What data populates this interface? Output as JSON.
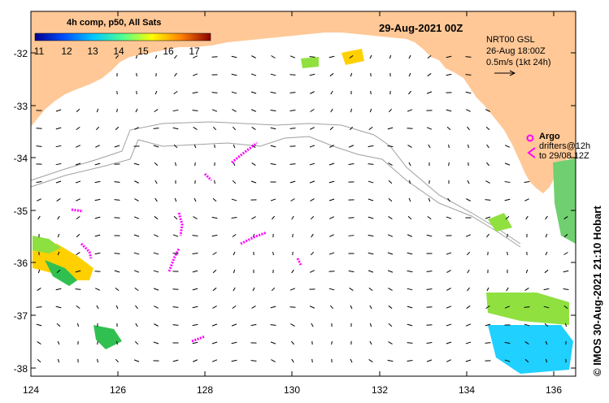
{
  "title": "29-Aug-2021 00Z",
  "colorbar": {
    "title": "4h comp, p50, All Sats",
    "ticks": [
      "11",
      "12",
      "13",
      "14",
      "15",
      "16",
      "17"
    ],
    "stops": [
      "#00008f",
      "#0050ff",
      "#00c8ff",
      "#50ff90",
      "#ffff00",
      "#ff8000",
      "#8b0000"
    ]
  },
  "currents_legend": {
    "line1": "NRT00 GSL",
    "line2": "26-Aug 18:00Z",
    "line3": "0.5m/s (1kt 24h)"
  },
  "argo": {
    "label": "Argo",
    "drifters_line1": "drifters@12h",
    "drifters_line2": "to 29/08 12Z"
  },
  "credit": "© IMOS 30-Aug-2021 21:10 Hobart",
  "axes": {
    "x_ticks": [
      "124",
      "126",
      "128",
      "130",
      "132",
      "134",
      "136"
    ],
    "y_ticks": [
      "-32",
      "-33",
      "-34",
      "-35",
      "-36",
      "-37",
      "-38"
    ],
    "x_range": [
      124,
      136.5
    ],
    "y_range": [
      -38.1,
      -31.3
    ]
  },
  "colors": {
    "land": "#ffc896",
    "argo": "#ff00ff",
    "isobath": "#a0a0a0"
  }
}
